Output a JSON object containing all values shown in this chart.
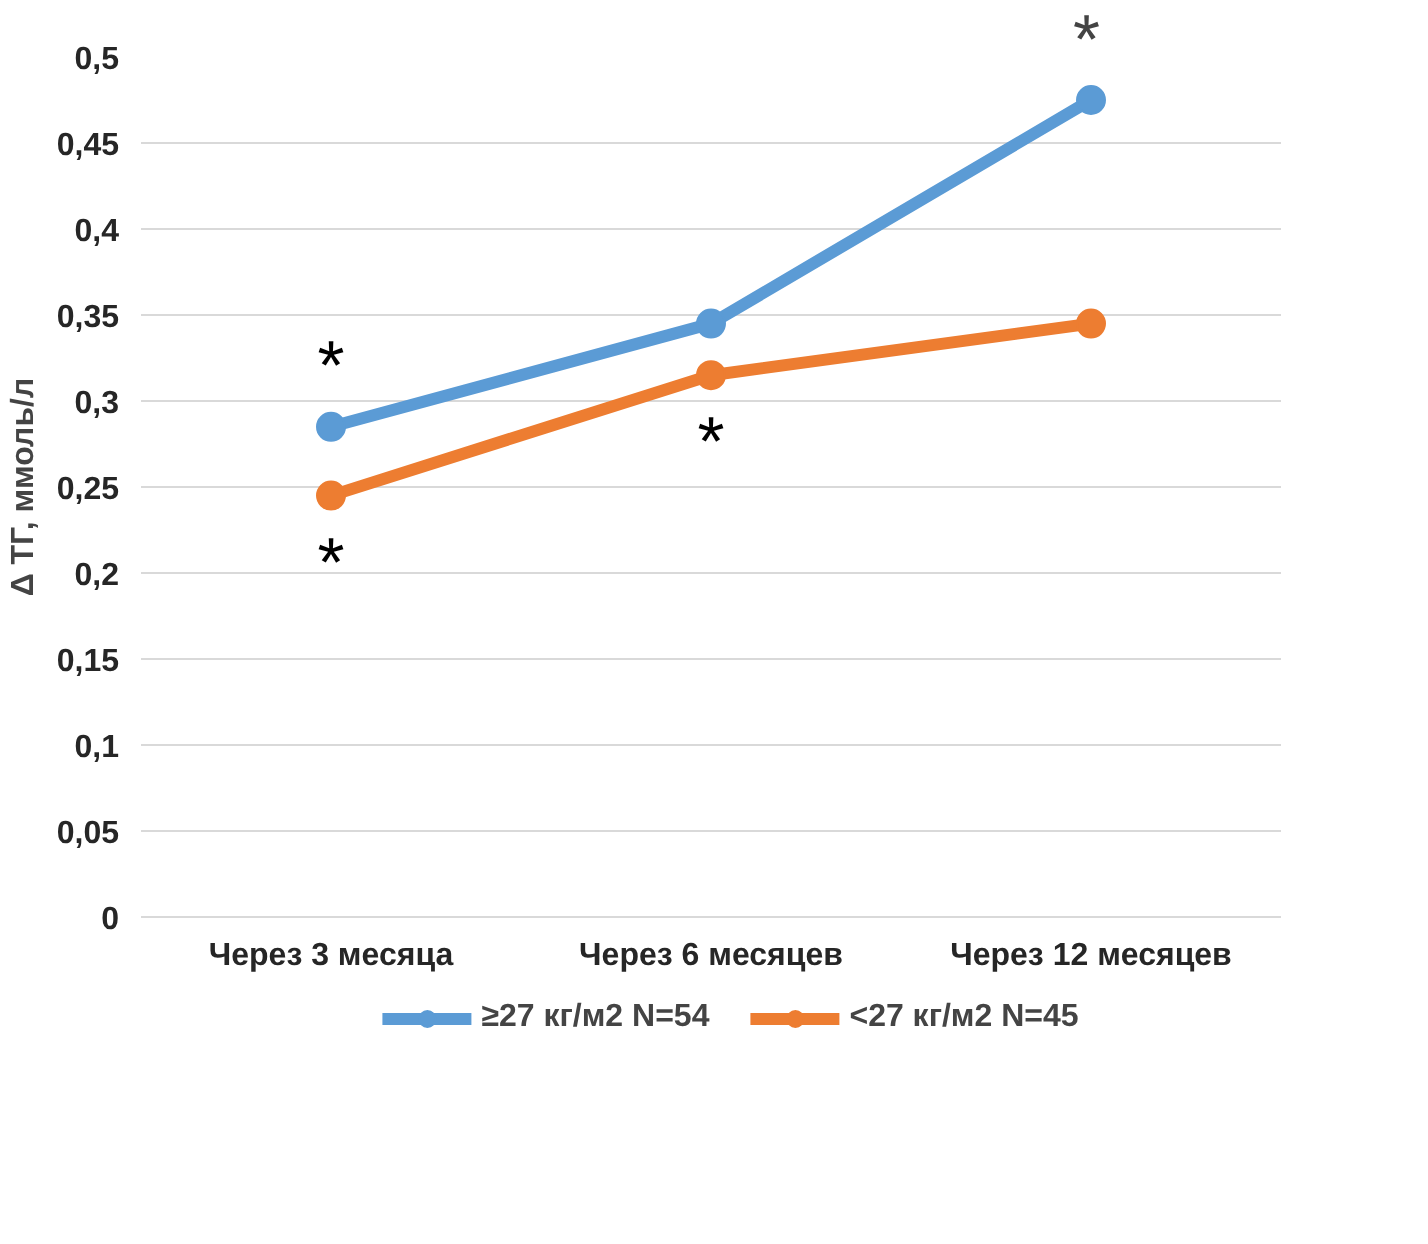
{
  "chart_data": {
    "type": "line",
    "ylabel": "Δ ТГ, ммоль/л",
    "categories": [
      "Через 3 месяца",
      "Через 6 месяцев",
      "Через 12 месяцев"
    ],
    "series": [
      {
        "name": "≥27 кг/м2 N=54",
        "color": "#5b9bd5",
        "values": [
          0.285,
          0.345,
          0.475
        ]
      },
      {
        "name": "<27 кг/м2 N=45",
        "color": "#ed7d31",
        "values": [
          0.245,
          0.315,
          0.345
        ]
      }
    ],
    "ylim": [
      0,
      0.5
    ],
    "yticks": [
      0,
      {
        "value": 0.05,
        "label": "0,05"
      },
      {
        "value": 0.1,
        "label": "0,1"
      },
      {
        "value": 0.15,
        "label": "0,15"
      },
      {
        "value": 0.2,
        "label": "0,2"
      },
      {
        "value": 0.25,
        "label": "0,25"
      },
      {
        "value": 0.3,
        "label": "0,3"
      },
      {
        "value": 0.35,
        "label": "0,35"
      },
      {
        "value": 0.4,
        "label": "0,4"
      },
      {
        "value": 0.45,
        "label": "0,45"
      },
      {
        "value": 0.5,
        "label": "0,5"
      }
    ],
    "annotations": [
      {
        "text": "*",
        "x": "Через 3 месяца",
        "y": 0.285
      },
      {
        "text": "*",
        "x": "Через 3 месяца",
        "y": 0.245
      },
      {
        "text": "*",
        "x": "Через 6 месяцев",
        "y": 0.315
      },
      {
        "text": "*",
        "x": "Через 12 месяцев",
        "y": 0.475
      }
    ],
    "grid": "y",
    "legend": "bottom",
    "marker": "circle",
    "line_style": "solid"
  }
}
